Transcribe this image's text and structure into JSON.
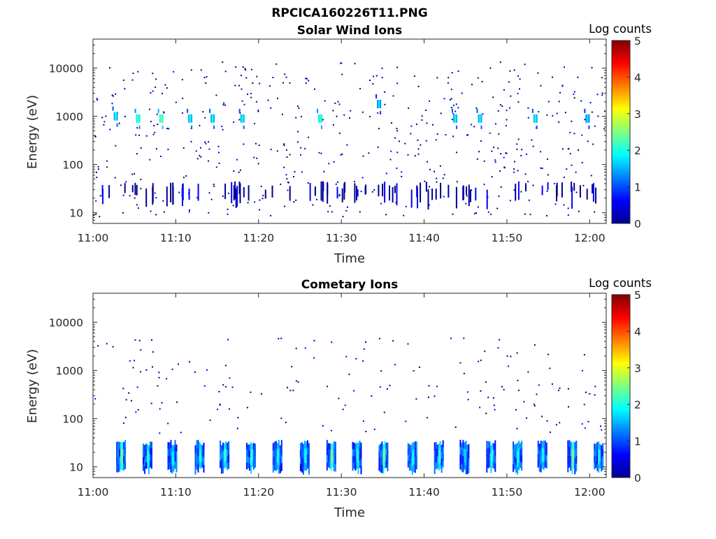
{
  "figure_title": "RPCICA160226T11.PNG",
  "chart_data": [
    {
      "type": "heatmap",
      "title": "Solar Wind Ions",
      "xlabel": "Time",
      "ylabel": "Energy (eV)",
      "xlim": [
        "11:00",
        "12:02"
      ],
      "ylim": [
        6,
        40000
      ],
      "yscale": "log",
      "xticks": [
        "11:00",
        "11:10",
        "11:20",
        "11:30",
        "11:40",
        "11:50",
        "12:00"
      ],
      "yticks": [
        "10",
        "100",
        "1000",
        "10000"
      ],
      "colorbar": {
        "label": "Log counts",
        "range": [
          0,
          5
        ],
        "ticks": [
          "0",
          "1",
          "2",
          "3",
          "4",
          "5"
        ],
        "colormap": "jet"
      },
      "bursts": [
        {
          "time": "11:02.5",
          "energy": 1000,
          "level": 2.0
        },
        {
          "time": "11:05.2",
          "energy": 900,
          "level": 2.3
        },
        {
          "time": "11:08.0",
          "energy": 900,
          "level": 2.5
        },
        {
          "time": "11:11.5",
          "energy": 900,
          "level": 2.0
        },
        {
          "time": "11:14.2",
          "energy": 900,
          "level": 2.0
        },
        {
          "time": "11:17.8",
          "energy": 900,
          "level": 2.0
        },
        {
          "time": "11:27.2",
          "energy": 900,
          "level": 2.3
        },
        {
          "time": "11:34.3",
          "energy": 1800,
          "level": 1.8
        },
        {
          "time": "11:43.5",
          "energy": 900,
          "level": 2.0
        },
        {
          "time": "11:46.5",
          "energy": 900,
          "level": 2.0
        },
        {
          "time": "11:53.2",
          "energy": 900,
          "level": 2.0
        },
        {
          "time": "11:59.5",
          "energy": 900,
          "level": 1.8
        }
      ]
    },
    {
      "type": "heatmap",
      "title": "Cometary Ions",
      "xlabel": "Time",
      "ylabel": "Energy (eV)",
      "xlim": [
        "11:00",
        "12:02"
      ],
      "ylim": [
        6,
        40000
      ],
      "yscale": "log",
      "xticks": [
        "11:00",
        "11:10",
        "11:20",
        "11:30",
        "11:40",
        "11:50",
        "12:00"
      ],
      "yticks": [
        "10",
        "100",
        "1000",
        "10000"
      ],
      "colorbar": {
        "label": "Log counts",
        "range": [
          0,
          5
        ],
        "ticks": [
          "0",
          "1",
          "2",
          "3",
          "4",
          "5"
        ],
        "colormap": "jet"
      },
      "bursts": [
        {
          "time": "11:03.3",
          "energy": 20,
          "level": 2.5
        },
        {
          "time": "11:06.5",
          "energy": 20,
          "level": 2.2
        },
        {
          "time": "11:09.5",
          "energy": 20,
          "level": 2.0
        },
        {
          "time": "11:12.8",
          "energy": 20,
          "level": 2.2
        },
        {
          "time": "11:15.8",
          "energy": 20,
          "level": 2.2
        },
        {
          "time": "11:19.0",
          "energy": 20,
          "level": 2.2
        },
        {
          "time": "11:22.2",
          "energy": 20,
          "level": 2.0
        },
        {
          "time": "11:25.5",
          "energy": 20,
          "level": 2.0
        },
        {
          "time": "11:28.7",
          "energy": 20,
          "level": 2.5
        },
        {
          "time": "11:31.8",
          "energy": 20,
          "level": 2.2
        },
        {
          "time": "11:35.0",
          "energy": 20,
          "level": 2.5
        },
        {
          "time": "11:38.5",
          "energy": 20,
          "level": 2.0
        },
        {
          "time": "11:41.7",
          "energy": 20,
          "level": 2.2
        },
        {
          "time": "11:44.8",
          "energy": 20,
          "level": 1.8
        },
        {
          "time": "11:48.0",
          "energy": 20,
          "level": 2.2
        },
        {
          "time": "11:51.2",
          "energy": 20,
          "level": 2.0
        },
        {
          "time": "11:54.2",
          "energy": 20,
          "level": 2.0
        },
        {
          "time": "11:57.8",
          "energy": 20,
          "level": 2.5
        },
        {
          "time": "12:01.0",
          "energy": 20,
          "level": 2.0
        }
      ]
    }
  ]
}
